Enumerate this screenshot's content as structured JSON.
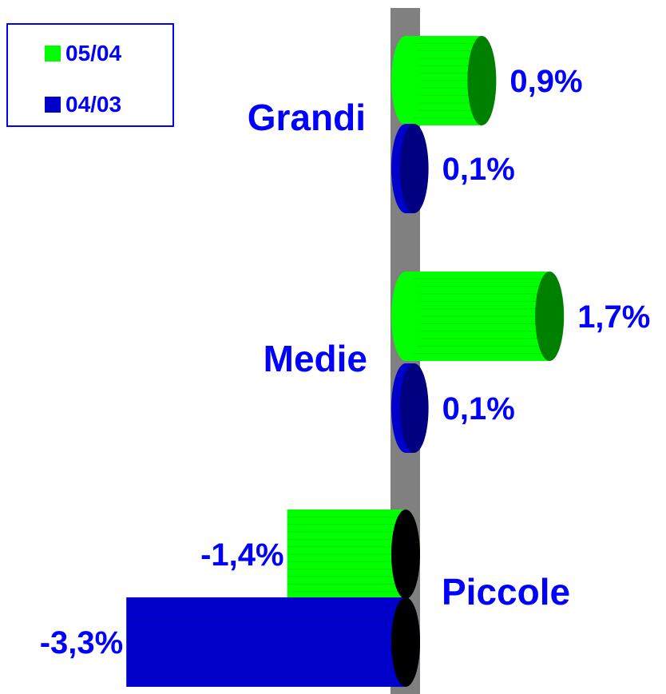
{
  "chart_data": {
    "type": "bar",
    "orientation": "horizontal",
    "style": "3d-cylinder",
    "categories": [
      "Grandi",
      "Medie",
      "Piccole"
    ],
    "series": [
      {
        "name": "05/04",
        "values": [
          0.9,
          1.7,
          -1.4
        ],
        "labels": [
          "0,9%",
          "1,7%",
          "-1,4%"
        ],
        "color": "#00ff00",
        "end_color_positive": "#008000"
      },
      {
        "name": "04/03",
        "values": [
          0.1,
          0.1,
          -3.3
        ],
        "labels": [
          "0,1%",
          "0,1%",
          "-3,3%"
        ],
        "color": "#0000cc",
        "end_color_positive": "#000080"
      }
    ],
    "negative_end_color": "#000000",
    "axis_color": "#808080",
    "label_color": "#0000ff",
    "legend_position": "top-left"
  }
}
